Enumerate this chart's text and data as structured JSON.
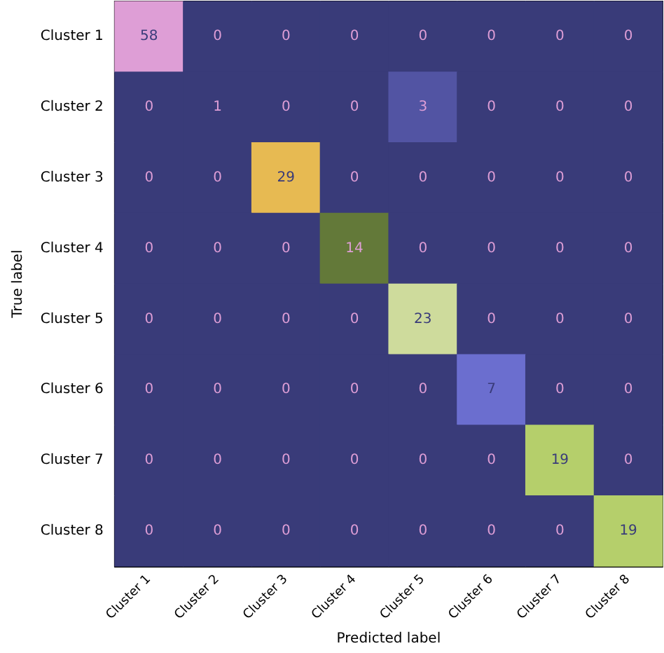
{
  "chart_data": {
    "type": "heatmap",
    "xlabel": "Predicted label",
    "ylabel": "True label",
    "categories": [
      "Cluster 1",
      "Cluster 2",
      "Cluster 3",
      "Cluster 4",
      "Cluster 5",
      "Cluster 6",
      "Cluster 7",
      "Cluster 8"
    ],
    "y_categories": [
      "Cluster 1",
      "Cluster 2",
      "Cluster 3",
      "Cluster 4",
      "Cluster 5",
      "Cluster 6",
      "Cluster 7",
      "Cluster 8"
    ],
    "cells": [
      [
        58,
        0,
        0,
        0,
        0,
        0,
        0,
        0
      ],
      [
        0,
        1,
        0,
        0,
        3,
        0,
        0,
        0
      ],
      [
        0,
        0,
        29,
        0,
        0,
        0,
        0,
        0
      ],
      [
        0,
        0,
        0,
        14,
        0,
        0,
        0,
        0
      ],
      [
        0,
        0,
        0,
        0,
        23,
        0,
        0,
        0
      ],
      [
        0,
        0,
        0,
        0,
        0,
        7,
        0,
        0
      ],
      [
        0,
        0,
        0,
        0,
        0,
        0,
        19,
        0
      ],
      [
        0,
        0,
        0,
        0,
        0,
        0,
        0,
        19
      ]
    ],
    "data_labels": true
  }
}
